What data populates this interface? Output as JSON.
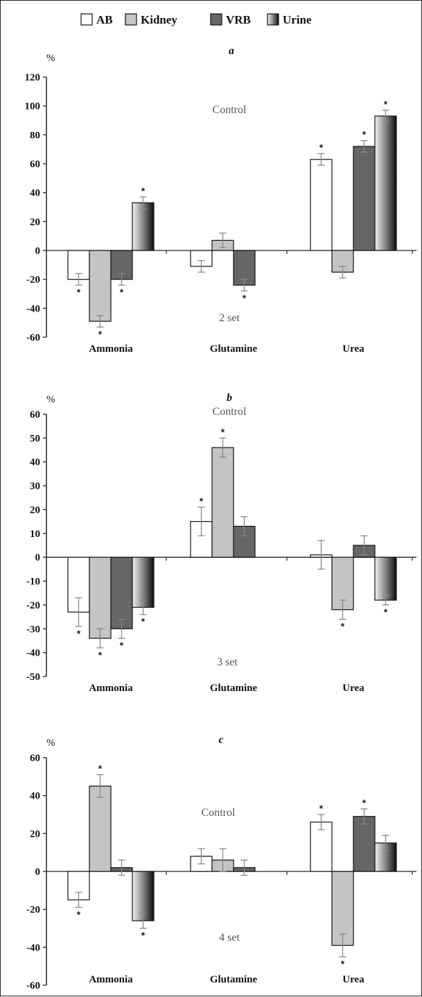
{
  "legend": [
    {
      "name": "AB",
      "fill": "#ffffff"
    },
    {
      "name": "Kidney",
      "fill": "#c4c4c4"
    },
    {
      "name": "VRB",
      "fill": "#666666"
    },
    {
      "name": "Urine",
      "fill": "gradient"
    }
  ],
  "colors": {
    "ab": "#ffffff",
    "kidney": "#c4c4c4",
    "vrb": "#666666",
    "urine_dark": "#111111",
    "urine_light": "#eeeeee",
    "axis": "#222222",
    "error_bar": "#888888"
  },
  "chart_data": [
    {
      "type": "bar",
      "panel_label": "a",
      "ylabel": "%",
      "annotation_top": "Control",
      "annotation_bottom": "2 set",
      "ylim": [
        -60,
        120
      ],
      "yticks": [
        "120",
        "100",
        "80",
        "60",
        "40",
        "20",
        "0",
        "-20",
        "-40",
        "-60"
      ],
      "categories": [
        "Ammonia",
        "Glutamine",
        "Urea"
      ],
      "series": [
        {
          "name": "AB",
          "values": [
            -20,
            -11,
            63
          ],
          "errors": [
            4,
            4,
            4
          ],
          "significant": [
            true,
            false,
            true
          ]
        },
        {
          "name": "Kidney",
          "values": [
            -49,
            7,
            -15
          ],
          "errors": [
            4,
            5,
            4
          ],
          "significant": [
            true,
            false,
            false
          ]
        },
        {
          "name": "VRB",
          "values": [
            -20,
            -24,
            72
          ],
          "errors": [
            4,
            4,
            4
          ],
          "significant": [
            true,
            true,
            true
          ]
        },
        {
          "name": "Urine",
          "values": [
            33,
            null,
            93
          ],
          "errors": [
            4,
            null,
            4
          ],
          "significant": [
            true,
            false,
            true
          ]
        }
      ]
    },
    {
      "type": "bar",
      "panel_label": "b",
      "ylabel": "%",
      "annotation_top": "Control",
      "annotation_bottom": "3 set",
      "ylim": [
        -50,
        60
      ],
      "yticks": [
        "60",
        "50",
        "40",
        "30",
        "20",
        "10",
        "0",
        "-10",
        "-20",
        "-30",
        "-40",
        "-50"
      ],
      "categories": [
        "Ammonia",
        "Glutamine",
        "Urea"
      ],
      "series": [
        {
          "name": "AB",
          "values": [
            -23,
            15,
            1
          ],
          "errors": [
            6,
            6,
            6
          ],
          "significant": [
            true,
            true,
            false
          ]
        },
        {
          "name": "Kidney",
          "values": [
            -34,
            46,
            -22
          ],
          "errors": [
            4,
            4,
            4
          ],
          "significant": [
            true,
            true,
            true
          ]
        },
        {
          "name": "VRB",
          "values": [
            -30,
            13,
            5
          ],
          "errors": [
            4,
            4,
            4
          ],
          "significant": [
            true,
            false,
            false
          ]
        },
        {
          "name": "Urine",
          "values": [
            -21,
            null,
            -18
          ],
          "errors": [
            3,
            null,
            2
          ],
          "significant": [
            true,
            false,
            true
          ]
        }
      ]
    },
    {
      "type": "bar",
      "panel_label": "c",
      "ylabel": "%",
      "annotation_top": "Control",
      "annotation_bottom": "4 set",
      "ylim": [
        -60,
        60
      ],
      "yticks": [
        "60",
        "40",
        "20",
        "0",
        "-20",
        "-40",
        "-60"
      ],
      "categories": [
        "Ammonia",
        "Glutamine",
        "Urea"
      ],
      "series": [
        {
          "name": "AB",
          "values": [
            -15,
            8,
            26
          ],
          "errors": [
            4,
            4,
            4
          ],
          "significant": [
            true,
            false,
            true
          ]
        },
        {
          "name": "Kidney",
          "values": [
            45,
            6,
            -39
          ],
          "errors": [
            6,
            6,
            6
          ],
          "significant": [
            true,
            false,
            true
          ]
        },
        {
          "name": "VRB",
          "values": [
            2,
            2,
            29
          ],
          "errors": [
            4,
            4,
            4
          ],
          "significant": [
            false,
            false,
            true
          ]
        },
        {
          "name": "Urine",
          "values": [
            -26,
            null,
            15
          ],
          "errors": [
            4,
            null,
            4
          ],
          "significant": [
            true,
            false,
            false
          ]
        }
      ]
    }
  ]
}
